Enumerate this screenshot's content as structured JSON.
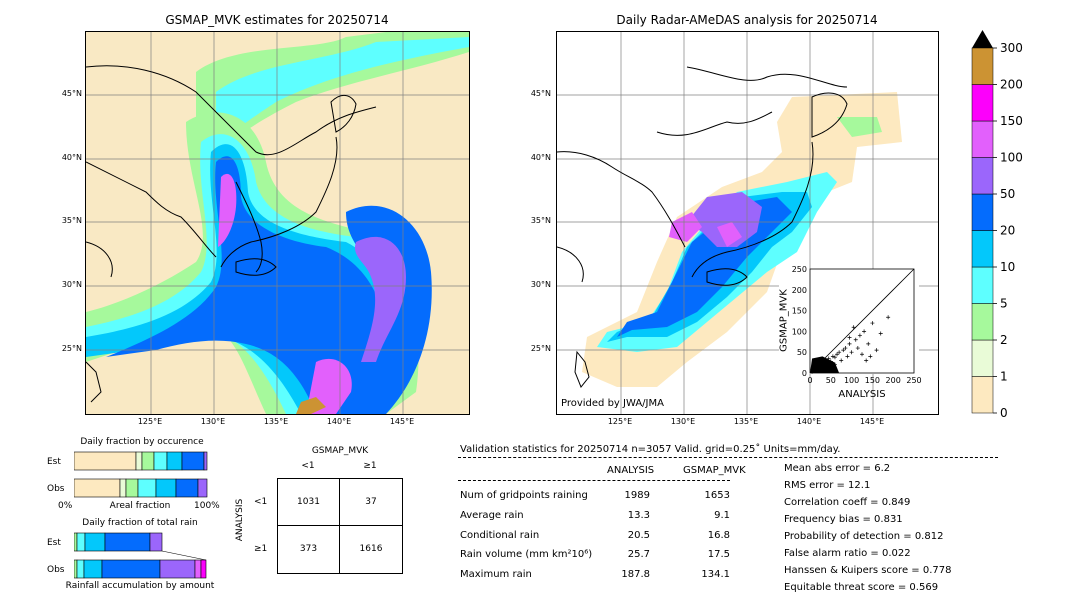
{
  "left_map": {
    "title": "GSMAP_MVK estimates for 20250714",
    "lat_labels": [
      "45°N",
      "40°N",
      "35°N",
      "30°N",
      "25°N"
    ],
    "lon_labels": [
      "125°E",
      "130°E",
      "135°E",
      "140°E",
      "145°E"
    ]
  },
  "right_map": {
    "title": "Daily Radar-AMeDAS analysis for 20250714",
    "lat_labels": [
      "45°N",
      "40°N",
      "35°N",
      "30°N",
      "25°N"
    ],
    "lon_labels": [
      "125°E",
      "130°E",
      "135°E",
      "140°E",
      "145°E"
    ],
    "provider": "Provided by JWA/JMA"
  },
  "colorbar": {
    "ticks": [
      "0",
      "1",
      "2",
      "5",
      "10",
      "20",
      "50",
      "100",
      "150",
      "200",
      "300"
    ],
    "colors": [
      "#fde9c0",
      "#e9fbd7",
      "#a6f99c",
      "#5effff",
      "#03c8fb",
      "#046cfd",
      "#9b66fb",
      "#e260fc",
      "#fc00fb",
      "#cc9333"
    ],
    "extend_color": "#000000"
  },
  "scatter": {
    "xlabel": "ANALYSIS",
    "ylabel": "GSMAP_MVK",
    "ticks": [
      "0",
      "50",
      "100",
      "150",
      "200",
      "250"
    ]
  },
  "occurrence": {
    "title": "Daily fraction by occurence",
    "rows": [
      "Est",
      "Obs"
    ],
    "axis_left": "0%",
    "axis_mid": "Areal fraction",
    "axis_right": "100%"
  },
  "total_rain": {
    "title": "Daily fraction of total rain",
    "rows": [
      "Est",
      "Obs"
    ],
    "footer": "Rainfall accumulation by amount"
  },
  "contingency": {
    "col_header": "GSMAP_MVK",
    "cols": [
      "<1",
      "≥1"
    ],
    "row_header": "ANALYSIS",
    "rows": [
      "<1",
      "≥1"
    ],
    "cells": [
      [
        "1031",
        "37"
      ],
      [
        "373",
        "1616"
      ]
    ]
  },
  "validation": {
    "header": "Validation statistics for 20250714  n=3057 Valid. grid=0.25˚ Units=mm/day.",
    "col_analysis": "ANALYSIS",
    "col_gsmap": "GSMAP_MVK",
    "rows": [
      {
        "label": "Num of gridpoints raining",
        "a": "1989",
        "g": "1653"
      },
      {
        "label": "Average rain",
        "a": "13.3",
        "g": "9.1"
      },
      {
        "label": "Conditional rain",
        "a": "20.5",
        "g": "16.8"
      },
      {
        "label": "Rain volume (mm km²10⁶)",
        "a": "25.7",
        "g": "17.5"
      },
      {
        "label": "Maximum rain",
        "a": "187.8",
        "g": "134.1"
      }
    ],
    "scores": [
      "Mean abs error =    6.2",
      "RMS error =   12.1",
      "Correlation coeff =  0.849",
      "Frequency bias =  0.831",
      "Probability of detection =  0.812",
      "False alarm ratio =  0.022",
      "Hanssen & Kuipers score =  0.778",
      "Equitable threat score =  0.569"
    ]
  },
  "chart_data": [
    {
      "type": "heatmap",
      "title": "GSMAP_MVK estimates for 20250714",
      "lat_ticks": [
        45,
        40,
        35,
        30,
        25
      ],
      "lon_ticks": [
        125,
        130,
        135,
        140,
        145
      ]
    },
    {
      "type": "heatmap",
      "title": "Daily Radar-AMeDAS analysis for 20250714",
      "lat_ticks": [
        45,
        40,
        35,
        30,
        25
      ],
      "lon_ticks": [
        125,
        130,
        135,
        140,
        145
      ]
    },
    {
      "type": "scatter",
      "xlabel": "ANALYSIS",
      "ylabel": "GSMAP_MVK",
      "xlim": [
        0,
        250
      ],
      "ylim": [
        0,
        250
      ],
      "points": [
        [
          5,
          3
        ],
        [
          10,
          8
        ],
        [
          12,
          15
        ],
        [
          18,
          10
        ],
        [
          20,
          22
        ],
        [
          25,
          18
        ],
        [
          30,
          25
        ],
        [
          35,
          20
        ],
        [
          40,
          30
        ],
        [
          45,
          35
        ],
        [
          50,
          28
        ],
        [
          55,
          40
        ],
        [
          60,
          38
        ],
        [
          65,
          45
        ],
        [
          70,
          50
        ],
        [
          75,
          30
        ],
        [
          80,
          55
        ],
        [
          85,
          60
        ],
        [
          90,
          40
        ],
        [
          95,
          70
        ],
        [
          100,
          50
        ],
        [
          110,
          80
        ],
        [
          115,
          60
        ],
        [
          120,
          90
        ],
        [
          125,
          45
        ],
        [
          130,
          100
        ],
        [
          140,
          70
        ],
        [
          150,
          120
        ],
        [
          160,
          55
        ],
        [
          170,
          95
        ],
        [
          187.8,
          134.1
        ],
        [
          145,
          40
        ],
        [
          135,
          30
        ],
        [
          105,
          110
        ],
        [
          95,
          85
        ],
        [
          60,
          20
        ],
        [
          40,
          12
        ],
        [
          30,
          8
        ],
        [
          15,
          5
        ],
        [
          8,
          12
        ]
      ]
    },
    {
      "type": "table",
      "title": "Validation statistics for 20250714  n=3057 Valid. grid=0.25˚ Units=mm/day."
    }
  ]
}
